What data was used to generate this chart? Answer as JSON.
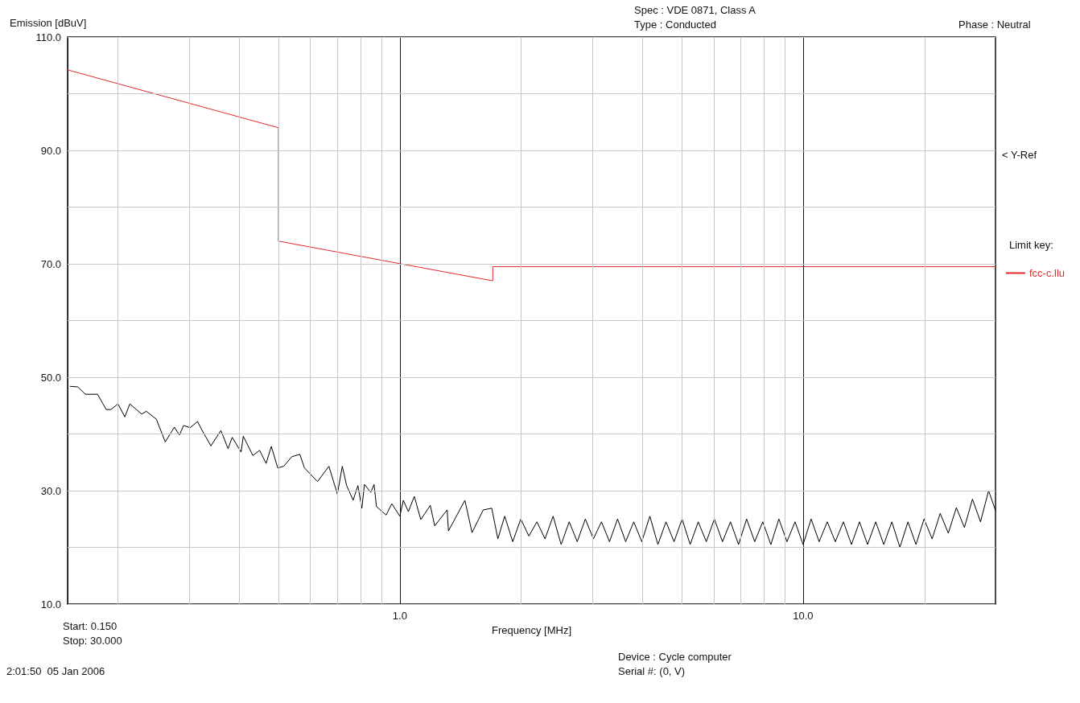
{
  "chart_data": {
    "type": "line",
    "ylabel": "Emission [dBuV]",
    "xlabel": "Frequency [MHz]",
    "legend_title": "Limit key:",
    "legend": "right",
    "grid": true,
    "log": "x",
    "marker": "none",
    "line_style": "solid",
    "xlim": [
      0.15,
      30
    ],
    "xticks": [
      {
        "value": 0.2,
        "label": null
      },
      {
        "value": 0.3,
        "label": null
      },
      {
        "value": 0.4,
        "label": null
      },
      {
        "value": 0.5,
        "label": null
      },
      {
        "value": 0.6,
        "label": null
      },
      {
        "value": 0.7,
        "label": null
      },
      {
        "value": 0.8,
        "label": null
      },
      {
        "value": 0.9,
        "label": null
      },
      {
        "value": 1,
        "label": "1.0"
      },
      {
        "value": 2,
        "label": null
      },
      {
        "value": 3,
        "label": null
      },
      {
        "value": 4,
        "label": null
      },
      {
        "value": 5,
        "label": null
      },
      {
        "value": 6,
        "label": null
      },
      {
        "value": 7,
        "label": null
      },
      {
        "value": 8,
        "label": null
      },
      {
        "value": 9,
        "label": null
      },
      {
        "value": 10,
        "label": "10.0"
      },
      {
        "value": 20,
        "label": null
      }
    ],
    "ylim": [
      10,
      110
    ],
    "yticks": [
      {
        "value": 10,
        "label": "10.0"
      },
      {
        "value": 20,
        "label": null
      },
      {
        "value": 30,
        "label": "30.0"
      },
      {
        "value": 40,
        "label": null
      },
      {
        "value": 50,
        "label": "50.0"
      },
      {
        "value": 60,
        "label": null
      },
      {
        "value": 70,
        "label": "70.0"
      },
      {
        "value": 80,
        "label": null
      },
      {
        "value": 90,
        "label": "90.0"
      },
      {
        "value": 100,
        "label": null
      },
      {
        "value": 110,
        "label": "110.0"
      }
    ],
    "annotations": [
      "Spec : VDE 0871, Class A",
      "Type : Conducted",
      "Phase : Neutral",
      "Start: 0.150",
      "Stop: 30.000",
      "2:01:50  05 Jan 2006",
      "Device : Cycle computer",
      "Serial #: (0, V)",
      "< Y-Ref"
    ],
    "series": [
      {
        "name": "fcc-c.llu",
        "color": "#e0282c",
        "x": [
          0.15,
          0.5,
          0.5,
          1.7,
          1.7,
          30
        ],
        "values": [
          104.2,
          94,
          74,
          67,
          69.5,
          69.5
        ]
      },
      {
        "color": "#000000",
        "x": [
          0.152,
          0.159,
          0.166,
          0.178,
          0.187,
          0.192,
          0.2,
          0.208,
          0.214,
          0.229,
          0.235,
          0.249,
          0.262,
          0.276,
          0.284,
          0.291,
          0.302,
          0.315,
          0.324,
          0.34,
          0.36,
          0.375,
          0.384,
          0.404,
          0.409,
          0.432,
          0.449,
          0.466,
          0.48,
          0.498,
          0.515,
          0.54,
          0.565,
          0.58,
          0.625,
          0.667,
          0.7,
          0.72,
          0.738,
          0.766,
          0.787,
          0.805,
          0.817,
          0.847,
          0.863,
          0.875,
          0.925,
          0.955,
          1.0,
          1.02,
          1.05,
          1.086,
          1.127,
          1.19,
          1.22,
          1.31,
          1.32,
          1.45,
          1.51,
          1.61,
          1.69,
          1.75,
          1.82,
          1.905,
          1.995,
          2.089,
          2.188,
          2.291,
          2.399,
          2.512,
          2.63,
          2.754,
          2.884,
          3.02,
          3.162,
          3.311,
          3.467,
          3.631,
          3.802,
          3.981,
          4.169,
          4.365,
          4.571,
          4.786,
          5.012,
          5.248,
          5.495,
          5.754,
          6.026,
          6.31,
          6.607,
          6.918,
          7.244,
          7.586,
          7.943,
          8.318,
          8.71,
          9.12,
          9.55,
          10,
          10.47,
          10.96,
          11.48,
          12.02,
          12.59,
          13.18,
          13.8,
          14.45,
          15.14,
          15.85,
          16.6,
          17.38,
          18.2,
          19.05,
          19.95,
          20.89,
          21.88,
          22.91,
          23.99,
          25.12,
          26.3,
          27.54,
          28.84,
          30
        ],
        "values": [
          48.4,
          48.3,
          47,
          47,
          44.3,
          44.3,
          45.3,
          43,
          45.3,
          43.5,
          44,
          42.6,
          38.6,
          41.2,
          39.8,
          41.5,
          41.1,
          42.2,
          40.5,
          37.9,
          40.6,
          37.4,
          39.4,
          36.8,
          39.6,
          36.2,
          37.1,
          34.8,
          37.8,
          34,
          34.3,
          36,
          36.4,
          34,
          31.6,
          34.3,
          29.4,
          34.3,
          30.9,
          28.3,
          30.9,
          26.9,
          31.1,
          29.7,
          31.1,
          27.2,
          25.7,
          27.7,
          25.5,
          28.3,
          26.3,
          29,
          24.9,
          27.4,
          23.8,
          26.6,
          22.9,
          28.3,
          22.6,
          26.6,
          26.9,
          21.5,
          25.5,
          21,
          25,
          22,
          24.5,
          21.5,
          25.5,
          20.5,
          24.5,
          21,
          25,
          21.5,
          24.5,
          21,
          25,
          21,
          24.5,
          21,
          25.5,
          20.5,
          24.5,
          21,
          25,
          20.5,
          24.5,
          21,
          25,
          21,
          24.5,
          20.5,
          25,
          21,
          24.5,
          20.5,
          25,
          21,
          24.5,
          20.5,
          25,
          21,
          24.5,
          21,
          24.5,
          20.5,
          24.5,
          20.5,
          24.5,
          20.5,
          24.5,
          20,
          24.5,
          20.5,
          25,
          21.5,
          26,
          22.5,
          27,
          23.5,
          28.5,
          24.5,
          30,
          26.5
        ]
      }
    ]
  }
}
